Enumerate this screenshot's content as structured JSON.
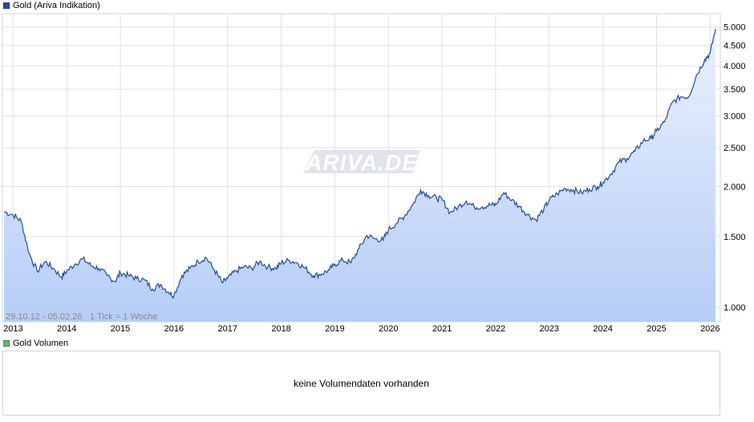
{
  "legend_price": {
    "label": "Gold (Ariva Indikation)",
    "color": "#1f4da3"
  },
  "legend_volume": {
    "label": "Gold Volumen",
    "color": "#5fb85f"
  },
  "info": {
    "range": "29.10.12 - 05.02.26",
    "tick": "1 Tick = 1 Woche"
  },
  "watermark": "ARIVA.DE",
  "volume_message": "keine Volumendaten vorhanden",
  "chart_data": {
    "type": "area",
    "scale": "log",
    "title": "",
    "series": [
      {
        "name": "Gold (Ariva Indikation)",
        "x": [
          2012.83,
          2013.0,
          2013.15,
          2013.3,
          2013.45,
          2013.6,
          2013.75,
          2013.9,
          2014.0,
          2014.15,
          2014.3,
          2014.45,
          2014.6,
          2014.75,
          2014.9,
          2015.0,
          2015.15,
          2015.3,
          2015.45,
          2015.6,
          2015.75,
          2015.9,
          2016.0,
          2016.15,
          2016.3,
          2016.45,
          2016.6,
          2016.75,
          2016.9,
          2017.0,
          2017.15,
          2017.3,
          2017.45,
          2017.6,
          2017.75,
          2017.9,
          2018.0,
          2018.15,
          2018.3,
          2018.45,
          2018.6,
          2018.75,
          2018.9,
          2019.0,
          2019.15,
          2019.3,
          2019.45,
          2019.6,
          2019.75,
          2019.9,
          2020.0,
          2020.15,
          2020.3,
          2020.45,
          2020.6,
          2020.75,
          2020.9,
          2021.0,
          2021.15,
          2021.3,
          2021.45,
          2021.6,
          2021.75,
          2021.9,
          2022.0,
          2022.15,
          2022.3,
          2022.45,
          2022.6,
          2022.75,
          2022.9,
          2023.0,
          2023.15,
          2023.3,
          2023.45,
          2023.6,
          2023.75,
          2023.9,
          2024.0,
          2024.15,
          2024.3,
          2024.45,
          2024.6,
          2024.75,
          2024.9,
          2025.0,
          2025.15,
          2025.3,
          2025.45,
          2025.6,
          2025.75,
          2025.9,
          2026.0,
          2026.1
        ],
        "values": [
          1730,
          1700,
          1640,
          1360,
          1230,
          1300,
          1250,
          1190,
          1230,
          1280,
          1320,
          1270,
          1250,
          1200,
          1160,
          1220,
          1200,
          1180,
          1170,
          1110,
          1140,
          1090,
          1070,
          1200,
          1250,
          1300,
          1330,
          1240,
          1150,
          1180,
          1230,
          1260,
          1250,
          1300,
          1260,
          1250,
          1290,
          1310,
          1290,
          1250,
          1200,
          1210,
          1240,
          1280,
          1310,
          1290,
          1400,
          1510,
          1480,
          1470,
          1560,
          1620,
          1690,
          1800,
          1960,
          1900,
          1870,
          1860,
          1720,
          1780,
          1840,
          1780,
          1780,
          1800,
          1800,
          1930,
          1850,
          1780,
          1700,
          1650,
          1760,
          1850,
          1920,
          1980,
          1960,
          1930,
          1970,
          2000,
          2050,
          2150,
          2300,
          2350,
          2450,
          2600,
          2640,
          2750,
          2900,
          3250,
          3350,
          3350,
          3800,
          4150,
          4300,
          4950
        ]
      }
    ],
    "x_ticks": [
      "2013",
      "2014",
      "2015",
      "2016",
      "2017",
      "2018",
      "2019",
      "2020",
      "2021",
      "2022",
      "2023",
      "2024",
      "2025",
      "2026"
    ],
    "y_ticks": [
      {
        "value": 1000,
        "label": "1.000"
      },
      {
        "value": 1500,
        "label": "1.500"
      },
      {
        "value": 2000,
        "label": "2.000"
      },
      {
        "value": 2500,
        "label": "2.500"
      },
      {
        "value": 3000,
        "label": "3.000"
      },
      {
        "value": 3500,
        "label": "3.500"
      },
      {
        "value": 4000,
        "label": "4.000"
      },
      {
        "value": 4500,
        "label": "4.500"
      },
      {
        "value": 5000,
        "label": "5.000"
      }
    ],
    "xlim": [
      2012.83,
      2026.1
    ],
    "ylim": [
      920,
      5400
    ],
    "grid": true,
    "line_color": "#1f4da3",
    "fill_color_top": "#eaf1fd",
    "fill_color_bottom": "#b6cdf6"
  }
}
